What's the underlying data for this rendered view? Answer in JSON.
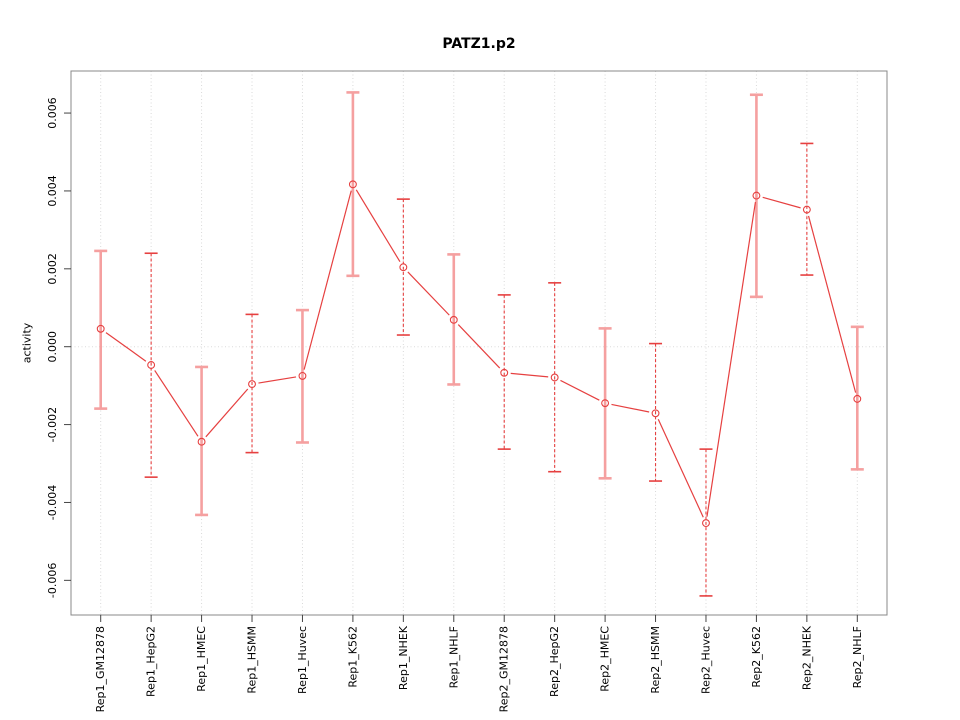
{
  "window": {
    "background": "#ffffff"
  },
  "chart_data": {
    "type": "line",
    "title": "PATZ1.p2",
    "xlabel": "",
    "ylabel": "activity",
    "categories": [
      "Rep1_GM12878",
      "Rep1_HepG2",
      "Rep1_HMEC",
      "Rep1_HSMM",
      "Rep1_Huvec",
      "Rep1_K562",
      "Rep1_NHEK",
      "Rep1_NHLF",
      "Rep2_GM12878",
      "Rep2_HepG2",
      "Rep2_HMEC",
      "Rep2_HSMM",
      "Rep2_Huvec",
      "Rep2_K562",
      "Rep2_NHEK",
      "Rep2_NHLF"
    ],
    "series": [
      {
        "name": "activity",
        "values": [
          0.00046,
          -0.00047,
          -0.00244,
          -0.00096,
          -0.00075,
          0.00417,
          0.00204,
          0.00069,
          -0.00067,
          -0.00079,
          -0.00145,
          -0.00171,
          -0.00453,
          0.00388,
          0.00352,
          -0.00134
        ],
        "err_high": [
          0.00246,
          0.0024,
          -0.00052,
          0.00083,
          0.00094,
          0.00653,
          0.00379,
          0.00237,
          0.00133,
          0.00164,
          0.00047,
          8e-05,
          -0.00263,
          0.00647,
          0.00522,
          0.00051
        ],
        "err_low": [
          -0.00159,
          -0.00335,
          -0.00432,
          -0.00272,
          -0.00246,
          0.00182,
          0.0003,
          -0.00097,
          -0.00263,
          -0.00321,
          -0.00338,
          -0.00345,
          -0.0064,
          0.00128,
          0.00184,
          -0.00315
        ],
        "errorbar_styles": [
          "light",
          "dark",
          "light",
          "dark",
          "light",
          "light",
          "dark",
          "light",
          "dark",
          "dark",
          "light",
          "dark",
          "dark",
          "light",
          "dark",
          "light"
        ]
      }
    ],
    "ylim": [
      -0.00689,
      0.00708
    ],
    "yticks": [
      -0.006,
      -0.004,
      -0.002,
      0,
      0.002,
      0.004,
      0.006
    ],
    "ytick_decimals": 3,
    "grid": {
      "vertical": "dotted line at each category",
      "horizontal": "dotted zero line only"
    },
    "legend": "none",
    "point_marker": "open-circle",
    "colors": {
      "series": "#e64040",
      "errorbar_light": "#f5a0a0",
      "errorbar_dark": "#e64040",
      "gridline": "#d9d9d9",
      "zero_line": "#dcdcdc",
      "axis_box": "#888888",
      "tick": "#444444",
      "text": "#000000"
    }
  }
}
